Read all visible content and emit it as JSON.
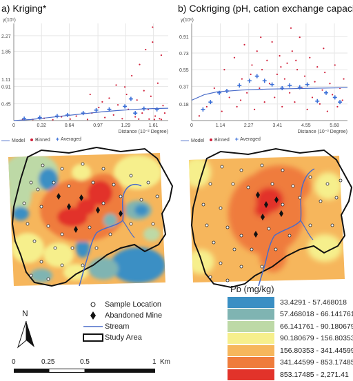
{
  "panels": [
    {
      "title": "a) Kriging*",
      "y_axis_label": "γ(10⁵)",
      "x_axis_label": "Distance (10⁻² Degree)",
      "legend": {
        "model": "Model",
        "binned": "Binned",
        "averaged": "Averaged"
      }
    },
    {
      "title": "b) Cokriging (pH, cation exchange capacity)",
      "y_axis_label": "γ(10⁶)",
      "x_axis_label": "Distance (10⁻³ Degree)",
      "legend": {
        "model": "Model",
        "binned": "Binned",
        "averaged": "Averaged"
      }
    }
  ],
  "chart_data": [
    {
      "type": "scatter",
      "title": "a) Kriging*",
      "xlabel": "Distance (10⁻² Degree)",
      "ylabel": "γ(10⁵)",
      "x_ticks": [
        "0",
        "0.32",
        "0.64",
        "0.97",
        "1.29",
        "1.61"
      ],
      "y_ticks": [
        "0.45",
        "0.91",
        "1.11",
        "1.85",
        "2.27"
      ],
      "xlim": [
        0,
        1.78
      ],
      "ylim": [
        0,
        2.6
      ],
      "series": [
        {
          "name": "Averaged",
          "points": [
            [
              0.12,
              0.05
            ],
            [
              0.3,
              0.08
            ],
            [
              0.5,
              0.12
            ],
            [
              0.62,
              0.15
            ],
            [
              0.8,
              0.2
            ],
            [
              0.95,
              0.28
            ],
            [
              1.1,
              0.3
            ],
            [
              1.28,
              0.38
            ],
            [
              1.35,
              0.58
            ],
            [
              1.5,
              0.32
            ],
            [
              1.65,
              0.3
            ],
            [
              1.4,
              0.2
            ]
          ]
        },
        {
          "name": "Binned",
          "points": [
            [
              0.1,
              0.02
            ],
            [
              0.22,
              0.03
            ],
            [
              0.35,
              0.06
            ],
            [
              0.45,
              0.02
            ],
            [
              0.55,
              0.1
            ],
            [
              0.65,
              0.04
            ],
            [
              0.72,
              0.12
            ],
            [
              0.85,
              0.03
            ],
            [
              0.9,
              0.2
            ],
            [
              0.98,
              0.35
            ],
            [
              1.05,
              0.08
            ],
            [
              1.1,
              0.6
            ],
            [
              1.15,
              0.15
            ],
            [
              1.2,
              0.42
            ],
            [
              1.25,
              0.05
            ],
            [
              1.28,
              0.9
            ],
            [
              1.32,
              0.3
            ],
            [
              1.36,
              1.2
            ],
            [
              1.4,
              0.1
            ],
            [
              1.42,
              0.55
            ],
            [
              1.45,
              1.5
            ],
            [
              1.48,
              0.2
            ],
            [
              1.5,
              0.8
            ],
            [
              1.52,
              1.9
            ],
            [
              1.55,
              0.3
            ],
            [
              1.58,
              0.65
            ],
            [
              1.6,
              2.1
            ],
            [
              1.63,
              0.12
            ],
            [
              1.66,
              1.0
            ],
            [
              1.7,
              1.75
            ],
            [
              1.72,
              0.4
            ],
            [
              1.74,
              0.2
            ],
            [
              1.6,
              2.5
            ],
            [
              1.3,
              0.7
            ],
            [
              1.18,
              0.95
            ],
            [
              1.02,
              0.5
            ],
            [
              0.88,
              0.7
            ],
            [
              1.68,
              0.05
            ],
            [
              1.44,
              0.04
            ],
            [
              1.56,
              0.04
            ],
            [
              1.62,
              0.03
            ],
            [
              1.7,
              0.03
            ]
          ]
        },
        {
          "name": "Model",
          "points": [
            [
              0,
              0.0
            ],
            [
              0.2,
              0.03
            ],
            [
              0.4,
              0.08
            ],
            [
              0.6,
              0.13
            ],
            [
              0.8,
              0.18
            ],
            [
              1.0,
              0.23
            ],
            [
              1.2,
              0.27
            ],
            [
              1.4,
              0.3
            ],
            [
              1.6,
              0.32
            ],
            [
              1.78,
              0.33
            ]
          ]
        }
      ]
    },
    {
      "type": "scatter",
      "title": "b) Cokriging (pH, cation exchange capacity)",
      "xlabel": "Distance (10⁻³ Degree)",
      "ylabel": "γ(10⁶)",
      "x_ticks": [
        "0",
        "1.14",
        "2.27",
        "3.41",
        "4.55",
        "5.68"
      ],
      "y_ticks": [
        "0.18",
        "0.37",
        "0.55",
        "0.73",
        "0.91"
      ],
      "xlim": [
        0,
        6.2
      ],
      "ylim": [
        0,
        1.05
      ],
      "series": [
        {
          "name": "Averaged",
          "points": [
            [
              0.45,
              0.12
            ],
            [
              0.75,
              0.2
            ],
            [
              1.1,
              0.3
            ],
            [
              1.4,
              0.32
            ],
            [
              1.9,
              0.38
            ],
            [
              2.3,
              0.43
            ],
            [
              2.6,
              0.48
            ],
            [
              2.9,
              0.43
            ],
            [
              3.2,
              0.39
            ],
            [
              3.6,
              0.35
            ],
            [
              3.9,
              0.38
            ],
            [
              4.3,
              0.36
            ],
            [
              4.6,
              0.39
            ],
            [
              5.0,
              0.21
            ],
            [
              5.35,
              0.3
            ],
            [
              5.7,
              0.25
            ],
            [
              5.9,
              0.2
            ]
          ]
        },
        {
          "name": "Binned",
          "points": [
            [
              0.3,
              0.05
            ],
            [
              0.6,
              0.15
            ],
            [
              0.9,
              0.35
            ],
            [
              1.2,
              0.1
            ],
            [
              1.3,
              0.55
            ],
            [
              1.5,
              0.25
            ],
            [
              1.7,
              0.68
            ],
            [
              1.8,
              0.15
            ],
            [
              2.0,
              0.45
            ],
            [
              2.1,
              0.82
            ],
            [
              2.2,
              0.3
            ],
            [
              2.4,
              0.6
            ],
            [
              2.5,
              0.12
            ],
            [
              2.6,
              0.75
            ],
            [
              2.7,
              0.35
            ],
            [
              2.8,
              0.55
            ],
            [
              2.9,
              0.2
            ],
            [
              3.0,
              0.65
            ],
            [
              3.1,
              0.4
            ],
            [
              3.2,
              0.85
            ],
            [
              3.3,
              0.25
            ],
            [
              3.4,
              0.5
            ],
            [
              3.5,
              0.7
            ],
            [
              3.6,
              0.15
            ],
            [
              3.7,
              0.45
            ],
            [
              3.8,
              0.62
            ],
            [
              3.9,
              0.3
            ],
            [
              4.0,
              0.75
            ],
            [
              4.1,
              0.2
            ],
            [
              4.2,
              0.55
            ],
            [
              4.3,
              0.9
            ],
            [
              4.4,
              0.35
            ],
            [
              4.5,
              0.48
            ],
            [
              4.6,
              0.12
            ],
            [
              4.7,
              0.68
            ],
            [
              4.8,
              0.25
            ],
            [
              4.9,
              0.42
            ],
            [
              5.0,
              0.58
            ],
            [
              5.1,
              0.18
            ],
            [
              5.2,
              0.33
            ],
            [
              5.3,
              0.52
            ],
            [
              5.4,
              0.1
            ],
            [
              5.5,
              0.4
            ],
            [
              5.6,
              0.28
            ],
            [
              5.7,
              0.6
            ],
            [
              5.8,
              0.15
            ],
            [
              5.9,
              0.35
            ],
            [
              6.0,
              0.22
            ],
            [
              6.05,
              0.45
            ],
            [
              2.35,
              0.5
            ],
            [
              3.55,
              0.58
            ],
            [
              4.15,
              0.65
            ],
            [
              1.95,
              0.22
            ],
            [
              2.75,
              0.9
            ],
            [
              3.95,
              1.0
            ],
            [
              5.25,
              0.78
            ]
          ]
        },
        {
          "name": "Model",
          "points": [
            [
              0,
              0.22
            ],
            [
              0.5,
              0.28
            ],
            [
              1.0,
              0.31
            ],
            [
              2.0,
              0.33
            ],
            [
              3.0,
              0.34
            ],
            [
              4.0,
              0.345
            ],
            [
              5.0,
              0.35
            ],
            [
              6.2,
              0.355
            ]
          ]
        }
      ]
    }
  ],
  "map_legend": {
    "sample_location": "Sample Location",
    "abandoned_mine": "Abandoned Mine",
    "stream": "Stream",
    "study_area": "Study Area"
  },
  "north_label": "N",
  "scale_bar": {
    "labels": [
      "0",
      "0.25",
      "0.5",
      "1"
    ],
    "unit": "Km"
  },
  "pb_legend": {
    "title": "Pb (mg/kg)",
    "classes": [
      {
        "label": "33.4291 - 57.468018",
        "color": "#3a8fc4"
      },
      {
        "label": "57.468018 - 66.141761",
        "color": "#7fb4b2"
      },
      {
        "label": "66.141761 - 90.180679",
        "color": "#bdd9a6"
      },
      {
        "label": "90.180679 - 156.80353",
        "color": "#f6ef8c"
      },
      {
        "label": "156.80353 - 341.44599",
        "color": "#f6b65c"
      },
      {
        "label": "341.44599 - 853.17485",
        "color": "#ef7c3c"
      },
      {
        "label": "853.17485 - 2,271.41",
        "color": "#e2332a"
      }
    ]
  }
}
